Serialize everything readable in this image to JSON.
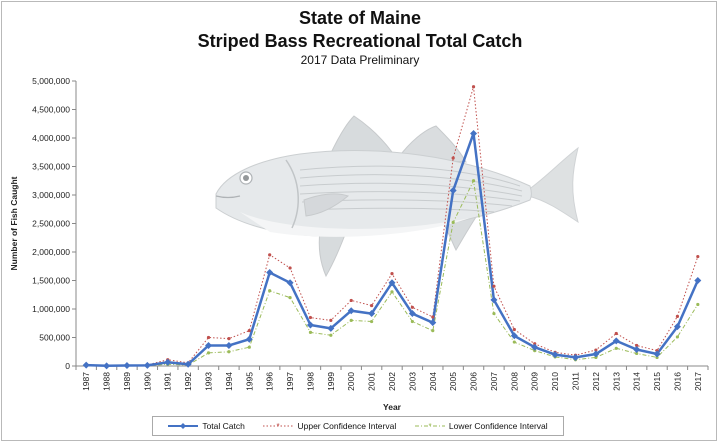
{
  "chart_data": {
    "type": "line",
    "title": "State of Maine",
    "subtitle": "Striped Bass Recreational Total Catch",
    "subtitle2": "2017 Data Preliminary",
    "xlabel": "Year",
    "ylabel": "Number of Fish Caught",
    "ylim": [
      0,
      5000000
    ],
    "y_ticks": [
      "0",
      "500,000",
      "1,000,000",
      "1,500,000",
      "2,000,000",
      "2,500,000",
      "3,000,000",
      "3,500,000",
      "4,000,000",
      "4,500,000",
      "5,000,000"
    ],
    "grid": "none",
    "legend_position": "bottom",
    "categories": [
      "1987",
      "1988",
      "1989",
      "1990",
      "1991",
      "1992",
      "1993",
      "1994",
      "1995",
      "1996",
      "1997",
      "1998",
      "1999",
      "2000",
      "2001",
      "2002",
      "2003",
      "2004",
      "2005",
      "2006",
      "2007",
      "2008",
      "2009",
      "2010",
      "2011",
      "2012",
      "2013",
      "2014",
      "2015",
      "2016",
      "2017"
    ],
    "series": [
      {
        "name": "Total Catch",
        "color": "#4472c4",
        "style": "solid",
        "values": [
          15000,
          3000,
          8000,
          10000,
          65000,
          30000,
          360000,
          360000,
          470000,
          1640000,
          1460000,
          720000,
          660000,
          970000,
          920000,
          1460000,
          920000,
          760000,
          3080000,
          4080000,
          1160000,
          530000,
          330000,
          200000,
          150000,
          210000,
          440000,
          290000,
          210000,
          690000,
          1500000
        ]
      },
      {
        "name": "Upper Confidence Interval",
        "color": "#c0504d",
        "style": "dotted",
        "values": [
          25000,
          8000,
          15000,
          20000,
          110000,
          55000,
          500000,
          480000,
          620000,
          1950000,
          1720000,
          850000,
          800000,
          1150000,
          1060000,
          1620000,
          1030000,
          860000,
          3650000,
          4900000,
          1400000,
          640000,
          390000,
          240000,
          190000,
          280000,
          570000,
          360000,
          270000,
          870000,
          1920000
        ]
      },
      {
        "name": "Lower Confidence Interval",
        "color": "#9bbb59",
        "style": "dashdot",
        "values": [
          8000,
          1000,
          3000,
          5000,
          30000,
          15000,
          230000,
          250000,
          330000,
          1320000,
          1200000,
          590000,
          540000,
          800000,
          780000,
          1300000,
          780000,
          620000,
          2520000,
          3250000,
          920000,
          420000,
          270000,
          160000,
          110000,
          150000,
          310000,
          220000,
          150000,
          510000,
          1080000
        ]
      }
    ]
  },
  "background_image": "fish-icon"
}
